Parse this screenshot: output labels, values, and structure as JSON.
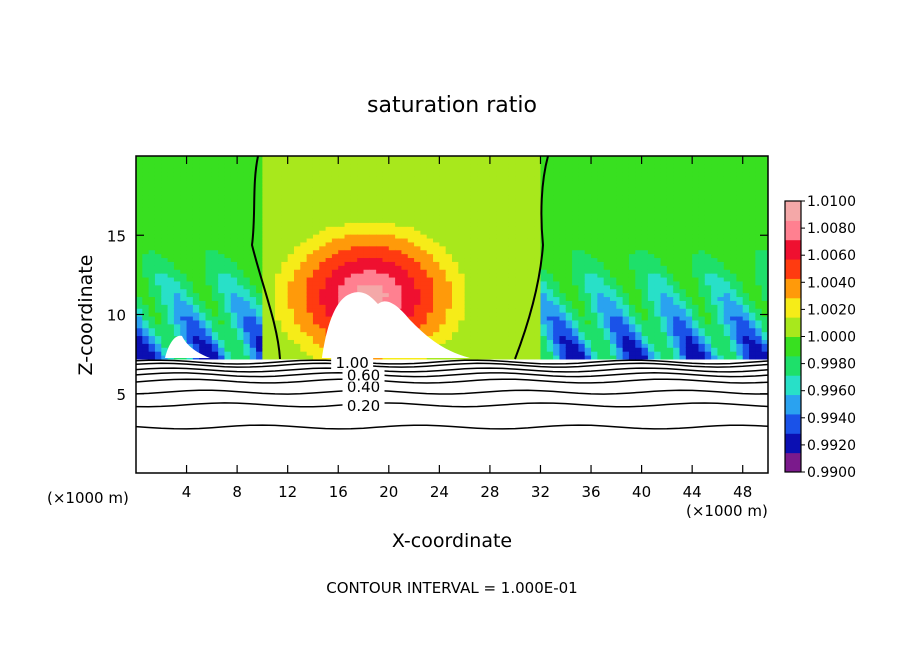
{
  "chart_data": {
    "type": "heatmap",
    "title": "saturation ratio",
    "xlabel": "X-coordinate",
    "ylabel": "Z-coordinate",
    "x_unit_left": "(×1000 m)",
    "x_unit_right": "(×1000 m)",
    "footer": "CONTOUR INTERVAL = 1.000E-01",
    "xlim": [
      0,
      50
    ],
    "ylim": [
      0,
      20
    ],
    "xticks": [
      4,
      8,
      12,
      16,
      20,
      24,
      28,
      32,
      36,
      40,
      44,
      48
    ],
    "yticks": [
      5,
      10,
      15
    ],
    "colorbar": {
      "levels": [
        "1.0100",
        "1.0080",
        "1.0060",
        "1.0040",
        "1.0020",
        "1.0000",
        "0.9980",
        "0.9960",
        "0.9940",
        "0.9920",
        "0.9900"
      ],
      "range": [
        0.99,
        1.01
      ],
      "colors": [
        "#7b1a8c",
        "#0b0fb2",
        "#1a52e8",
        "#2aa2f0",
        "#28e0c8",
        "#1ee06a",
        "#38e020",
        "#a8e81c",
        "#f6ec18",
        "#ff9a0a",
        "#ff3b10",
        "#ef1030",
        "#ff8090",
        "#f4a8a8"
      ]
    },
    "contour_labels": [
      "0.20",
      "0.40",
      "0.60",
      "1.00"
    ],
    "contour_label_values": [
      0.2,
      0.4,
      0.6,
      1.0
    ],
    "unity_contour_x": [
      11.3,
      30.4
    ],
    "cloud_top_z": 7.2,
    "saturated_dome_peak": {
      "x": 18.5,
      "z": 15.2
    },
    "grid": false
  }
}
